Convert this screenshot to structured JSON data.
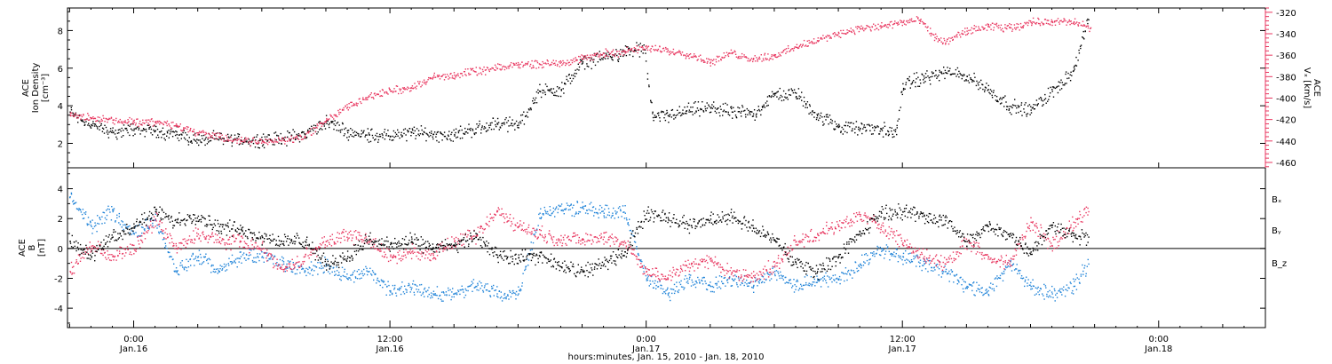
{
  "chart_data": [
    {
      "id": "top",
      "type": "scatter",
      "xlabel": "hours:minutes, Jan. 15, 2010 - Jan. 18, 2010",
      "x_ticks": [
        {
          "hours": 0,
          "label1": "0:00",
          "label2": "Jan.16"
        },
        {
          "hours": 12,
          "label1": "12:00",
          "label2": "Jan.16"
        },
        {
          "hours": 24,
          "label1": "0:00",
          "label2": "Jan.17"
        },
        {
          "hours": 36,
          "label1": "12:00",
          "label2": "Jan.17"
        },
        {
          "hours": 48,
          "label1": "0:00",
          "label2": "Jan.18"
        }
      ],
      "xlim": [
        -3.1,
        53
      ],
      "left_axis": {
        "label_line1": "ACE",
        "label_line2": "Ion Density",
        "label_line3": "[cm⁻³]",
        "ylim": [
          0.7,
          9.2
        ],
        "ticks": [
          2,
          4,
          6,
          8
        ]
      },
      "right_axis": {
        "label_line1": "ACE",
        "label_line2": "Vₓ [km/s]",
        "ylim": [
          -465,
          -316
        ],
        "ticks": [
          -320,
          -340,
          -360,
          -380,
          -400,
          -420,
          -440,
          -460
        ],
        "color": "#e8365f"
      },
      "series": [
        {
          "axis": "left",
          "color": "#000000",
          "x": [
            -3,
            -2,
            -1,
            0,
            1,
            2,
            3,
            4,
            5,
            6,
            7,
            8,
            9,
            10,
            11,
            12,
            13,
            14,
            15,
            16,
            17,
            18,
            19,
            20,
            21,
            22,
            23,
            23.9,
            24.3,
            25,
            26,
            27,
            28,
            29,
            30,
            31,
            32,
            33,
            34,
            35,
            35.7,
            36,
            37,
            38,
            39,
            40,
            41,
            42,
            43,
            44,
            44.7
          ],
          "y": [
            3.7,
            3.0,
            2.6,
            2.8,
            2.7,
            2.5,
            2.2,
            2.3,
            2.2,
            2.2,
            2.3,
            2.5,
            3.2,
            2.6,
            2.5,
            2.4,
            2.6,
            2.5,
            2.5,
            2.8,
            3.1,
            3.0,
            4.8,
            4.9,
            6.3,
            6.6,
            6.9,
            7.0,
            3.4,
            3.5,
            3.8,
            3.9,
            3.7,
            3.6,
            4.6,
            4.7,
            3.5,
            2.9,
            2.8,
            2.8,
            2.5,
            5.2,
            5.5,
            5.8,
            5.6,
            4.9,
            4.0,
            3.8,
            4.8,
            5.9,
            8.6
          ]
        },
        {
          "axis": "right",
          "color": "#e8365f",
          "x": [
            -3,
            -2,
            -1,
            0,
            1,
            2,
            3,
            4,
            5,
            6,
            7,
            8,
            9,
            10,
            11,
            12,
            13,
            14,
            15,
            16,
            17,
            18,
            19,
            20,
            21,
            22,
            23,
            24,
            25,
            26,
            27,
            28,
            29,
            30,
            31,
            32,
            33,
            34,
            35,
            36,
            36.8,
            37.5,
            38,
            39,
            40,
            41,
            42,
            43,
            44,
            44.8
          ],
          "y": [
            -415,
            -418,
            -420,
            -422,
            -422,
            -425,
            -432,
            -436,
            -440,
            -440,
            -439,
            -435,
            -420,
            -408,
            -398,
            -393,
            -390,
            -380,
            -378,
            -375,
            -372,
            -368,
            -368,
            -366,
            -363,
            -358,
            -356,
            -353,
            -355,
            -359,
            -366,
            -358,
            -363,
            -360,
            -352,
            -346,
            -339,
            -335,
            -333,
            -329,
            -327,
            -343,
            -348,
            -337,
            -333,
            -334,
            -329,
            -328,
            -329,
            -334
          ]
        }
      ]
    },
    {
      "id": "bottom",
      "type": "scatter",
      "left_axis": {
        "label_line1": "ACE",
        "label_line2": "B",
        "label_line3": "[nT]",
        "ylim": [
          -5.3,
          5.4
        ],
        "ticks": [
          -4,
          -2,
          0,
          2,
          4
        ]
      },
      "zero_line": true,
      "legend_position": "right",
      "series": [
        {
          "name": "Bₓ",
          "color": "#000000",
          "x": [
            -3,
            -2,
            -1,
            0,
            1,
            2,
            3,
            4,
            5,
            6,
            7,
            8,
            9,
            10,
            11,
            12,
            13,
            14,
            15,
            16,
            17,
            18,
            19,
            20,
            21,
            22,
            23,
            24,
            25,
            26,
            27,
            28,
            29,
            30,
            31,
            32,
            33,
            34,
            35,
            36,
            37,
            38,
            39,
            40,
            41,
            42,
            43,
            44,
            44.7
          ],
          "y": [
            0.5,
            -0.5,
            0.8,
            1.5,
            2.5,
            1.8,
            2.2,
            1.5,
            1.3,
            0.8,
            0.5,
            0.5,
            -1.0,
            -0.5,
            0.6,
            0.3,
            0.5,
            0.1,
            0.2,
            0.8,
            -0.4,
            -0.6,
            -0.5,
            -1.2,
            -1.5,
            -1.0,
            -0.2,
            2.4,
            2.1,
            1.6,
            2.0,
            2.1,
            1.4,
            0.6,
            -1.0,
            -1.5,
            -0.5,
            1.0,
            2.4,
            2.5,
            2.2,
            1.9,
            0.5,
            1.5,
            1.0,
            -0.2,
            1.6,
            0.9,
            0.8
          ]
        },
        {
          "name": "Bᵧ",
          "color": "#1f83d8",
          "x": [
            -3,
            -2,
            -1,
            0,
            1,
            2,
            3,
            4,
            5,
            6,
            7,
            8,
            9,
            10,
            11,
            12,
            13,
            14,
            15,
            16,
            17,
            18,
            19,
            20,
            21,
            22,
            23,
            24,
            25,
            26,
            27,
            28,
            29,
            30,
            31,
            32,
            33,
            34,
            35,
            36,
            37,
            38,
            39,
            40,
            41,
            42,
            43,
            44,
            44.7
          ],
          "y": [
            3.5,
            1.5,
            2.5,
            1.0,
            2.0,
            -1.5,
            -0.5,
            -1.5,
            -0.5,
            -0.5,
            -1.0,
            -1.5,
            -1.0,
            -2.0,
            -1.5,
            -2.8,
            -2.6,
            -3.0,
            -3.0,
            -2.5,
            -3.0,
            -3.0,
            2.4,
            2.6,
            2.8,
            2.4,
            2.4,
            -2.0,
            -3.0,
            -2.0,
            -2.5,
            -2.0,
            -2.5,
            -1.5,
            -2.5,
            -2.0,
            -2.0,
            -1.0,
            0.0,
            -0.5,
            -1.0,
            -1.5,
            -2.5,
            -2.8,
            -1.0,
            -2.5,
            -3.0,
            -2.5,
            -1.0
          ]
        },
        {
          "name": "B_z",
          "color": "#e8365f",
          "x": [
            -3,
            -2,
            -1,
            0,
            1,
            2,
            3,
            4,
            5,
            6,
            7,
            8,
            9,
            10,
            11,
            12,
            13,
            14,
            15,
            16,
            17,
            18,
            19,
            20,
            21,
            22,
            23,
            24,
            25,
            26,
            27,
            28,
            29,
            30,
            31,
            32,
            33,
            34,
            35,
            36,
            37,
            38,
            39,
            40,
            41,
            42,
            43,
            44,
            44.7
          ],
          "y": [
            -1.5,
            0.2,
            -0.5,
            0.0,
            2.0,
            0.0,
            1.0,
            0.5,
            0.5,
            0.0,
            -1.5,
            -0.5,
            0.5,
            1.0,
            0.5,
            -0.5,
            -0.2,
            -0.3,
            0.5,
            0.8,
            2.5,
            1.5,
            1.0,
            0.6,
            0.6,
            0.8,
            0.4,
            -1.5,
            -2.0,
            -1.0,
            -0.8,
            -1.6,
            -1.8,
            -1.2,
            0.5,
            1.0,
            1.5,
            2.2,
            1.6,
            0.4,
            -0.5,
            -1.0,
            0.5,
            -0.5,
            -1.0,
            1.8,
            0.2,
            1.8,
            2.5
          ]
        }
      ]
    }
  ]
}
